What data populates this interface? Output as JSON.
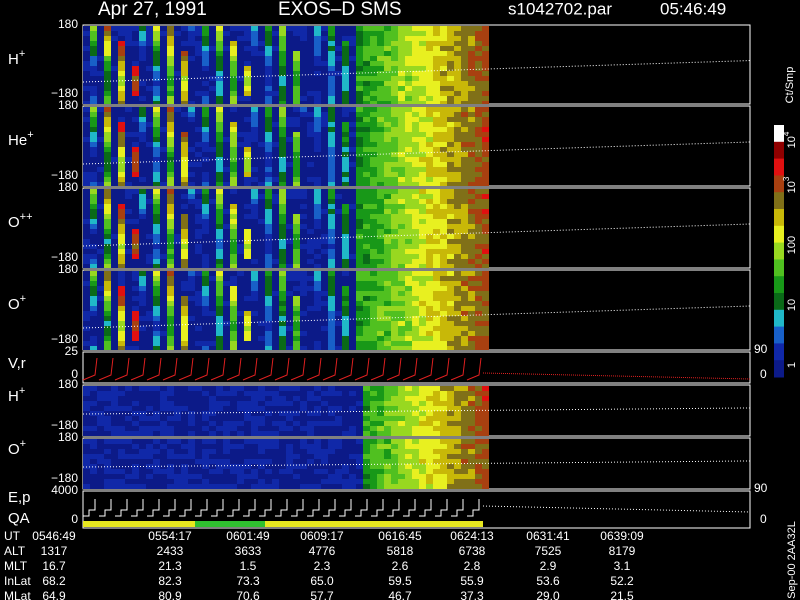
{
  "header": {
    "date": "Apr 27, 1991",
    "instrument": "EXOS–D SMS",
    "file": "s1042702.par",
    "time": "05:46:49"
  },
  "panels": [
    {
      "ion": "H",
      "charge": "+",
      "top": "180",
      "bottom": "−180"
    },
    {
      "ion": "He",
      "charge": "+",
      "top": "180",
      "bottom": "−180"
    },
    {
      "ion": "O",
      "charge": "++",
      "top": "180",
      "bottom": "−180"
    },
    {
      "ion": "O",
      "charge": "+",
      "top": "180",
      "bottom": "−180"
    },
    {
      "ion": "V,r",
      "top": "25",
      "bottom": "0",
      "right_top": "90",
      "right_bottom": "0"
    },
    {
      "ion": "H",
      "charge": "+",
      "top": "180",
      "bottom": "−180"
    },
    {
      "ion": "O",
      "charge": "+",
      "top": "180",
      "bottom": "−180"
    },
    {
      "ion": "E,p",
      "ion2": "QA",
      "top": "4000",
      "bottom": "0",
      "right_top": "90",
      "right_bottom": "0"
    }
  ],
  "colorbar": {
    "unit": "Ct/Smp",
    "labels": [
      {
        "base": "10",
        "exp": "4"
      },
      {
        "base": "10",
        "exp": "3"
      },
      {
        "base": "100"
      },
      {
        "base": "10"
      },
      {
        "base": "1"
      }
    ]
  },
  "table": {
    "rows": [
      {
        "label": "UT",
        "cells": [
          "0546:49",
          "0554:17",
          "0601:49",
          "0609:17",
          "0616:45",
          "0624:13",
          "0631:41",
          "0639:09"
        ]
      },
      {
        "label": "ALT",
        "cells": [
          "1317",
          "2433",
          "3633",
          "4776",
          "5818",
          "6738",
          "7525",
          "8179"
        ]
      },
      {
        "label": "MLT",
        "cells": [
          "16.7",
          "21.3",
          "1.5",
          "2.3",
          "2.6",
          "2.8",
          "2.9",
          "3.1"
        ]
      },
      {
        "label": "InLat",
        "cells": [
          "68.2",
          "82.3",
          "73.3",
          "65.0",
          "59.5",
          "55.9",
          "53.6",
          "52.2"
        ]
      },
      {
        "label": "MLat",
        "cells": [
          "64.9",
          "80.9",
          "70.6",
          "57.7",
          "46.7",
          "37.3",
          "29.0",
          "21.5"
        ]
      }
    ]
  },
  "footer": "Sep-00  2AA32L"
}
